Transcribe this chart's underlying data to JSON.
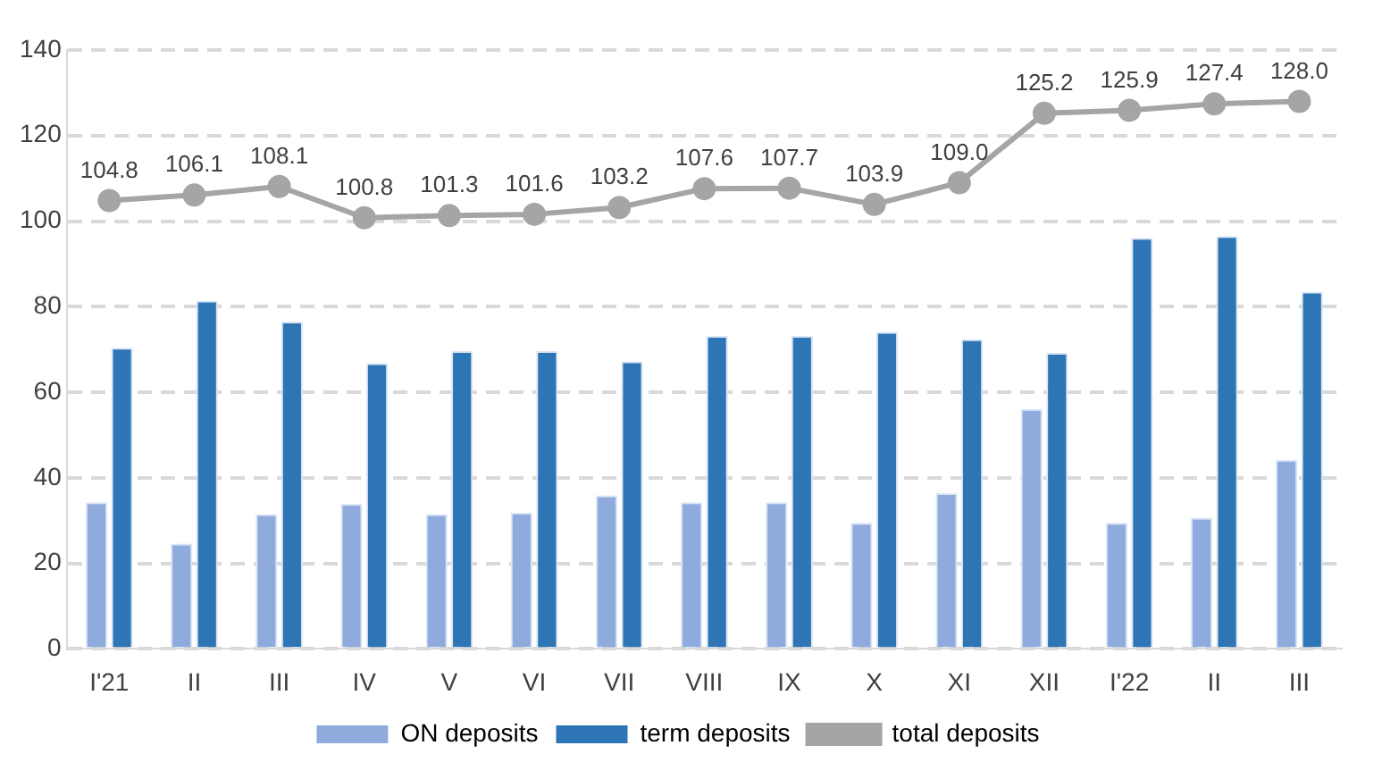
{
  "chart_data": {
    "type": "bar",
    "categories": [
      "I'21",
      "II",
      "III",
      "IV",
      "V",
      "VI",
      "VII",
      "VIII",
      "IX",
      "X",
      "XI",
      "XII",
      "I'22",
      "II",
      "III"
    ],
    "series": [
      {
        "name": "ON deposits",
        "color": "#8faadc",
        "values": [
          34.3,
          24.6,
          31.5,
          33.9,
          31.5,
          31.9,
          35.9,
          34.3,
          34.3,
          29.5,
          36.4,
          56.1,
          29.5,
          30.7,
          44.2
        ]
      },
      {
        "name": "term deposits",
        "color": "#2e75b6",
        "values": [
          70.4,
          81.4,
          76.5,
          66.8,
          69.6,
          69.6,
          67.2,
          73.2,
          73.2,
          74.1,
          72.4,
          69.2,
          96.1,
          96.5,
          83.5
        ]
      },
      {
        "name": "total deposits",
        "type": "line",
        "color": "#a5a5a5",
        "marker": "circle",
        "values": [
          104.8,
          106.1,
          108.1,
          100.8,
          101.3,
          101.6,
          103.2,
          107.6,
          107.7,
          103.9,
          109.0,
          125.2,
          125.9,
          127.4,
          128.0
        ],
        "value_labels": [
          "104.8",
          "106.1",
          "108.1",
          "100.8",
          "101.3",
          "101.6",
          "103.2",
          "107.6",
          "107.7",
          "103.9",
          "109.0",
          "125.2",
          "125.9",
          "127.4",
          "128.0"
        ]
      }
    ],
    "ylim": [
      0,
      140
    ],
    "yticks": [
      0,
      20,
      40,
      60,
      80,
      100,
      120,
      140
    ],
    "grid": "y",
    "legend": "bottom"
  }
}
